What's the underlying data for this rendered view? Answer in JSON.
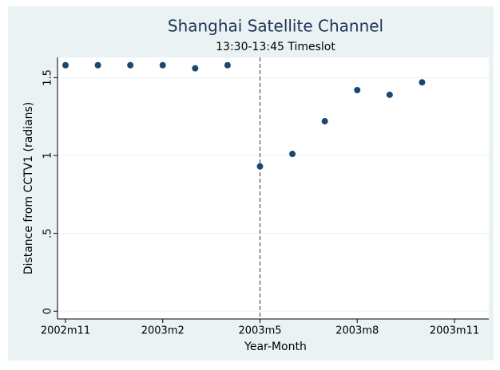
{
  "chart_data": {
    "type": "scatter",
    "title": "Shanghai Satellite Channel",
    "subtitle": "13:30-13:45 Timeslot",
    "x_label": "Year-Month",
    "y_label": "Distance from CCTV1 (radians)",
    "categories": [
      "2002m11",
      null,
      null,
      "2003m2",
      null,
      null,
      "2003m5",
      null,
      null,
      "2003m8",
      null,
      null,
      "2003m11"
    ],
    "values": [
      1.58,
      1.58,
      1.58,
      1.58,
      1.56,
      1.58,
      0.93,
      1.01,
      1.22,
      1.42,
      1.39,
      1.47,
      null
    ],
    "color": "#1a476f",
    "ylim": [
      -0.05,
      1.63
    ],
    "yticks": [
      0,
      {
        "value": 0.5,
        "label": ".5"
      },
      1,
      1.5
    ],
    "grid": true,
    "reference_line": {
      "x": "2003m5"
    }
  }
}
